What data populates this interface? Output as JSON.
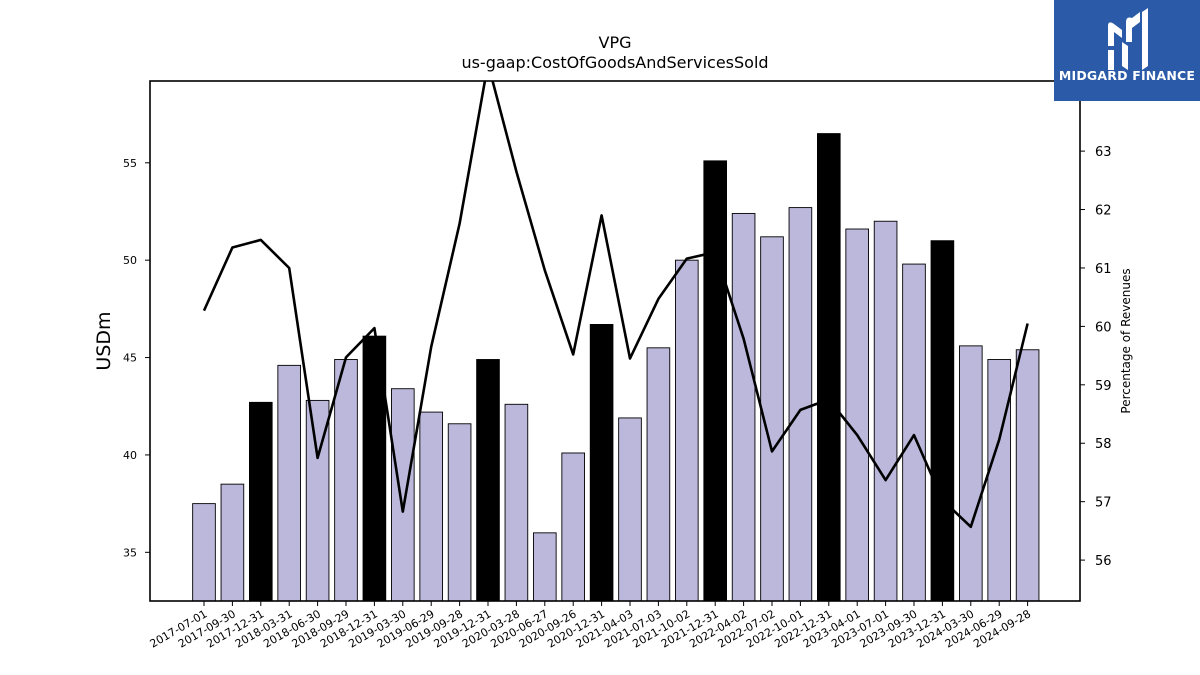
{
  "chart_data": {
    "type": "bar",
    "title": "VPG",
    "subtitle": "us-gaap:CostOfGoodsAndServicesSold",
    "ylabel": "USDm",
    "y2label": "Percentage of Revenues",
    "ylim": [
      32.5,
      59.2
    ],
    "y2lim": [
      55.3,
      64.2
    ],
    "yticks": [
      35,
      40,
      45,
      50,
      55
    ],
    "y2ticks": [
      56,
      57,
      58,
      59,
      60,
      61,
      62,
      63
    ],
    "categories": [
      "2017-07-01",
      "2017-09-30",
      "2017-12-31",
      "2018-03-31",
      "2018-06-30",
      "2018-09-29",
      "2018-12-31",
      "2019-03-30",
      "2019-06-29",
      "2019-09-28",
      "2019-12-31",
      "2020-03-28",
      "2020-06-27",
      "2020-09-26",
      "2020-12-31",
      "2021-04-03",
      "2021-07-03",
      "2021-10-02",
      "2021-12-31",
      "2022-04-02",
      "2022-07-02",
      "2022-10-01",
      "2022-12-31",
      "2023-04-01",
      "2023-07-01",
      "2023-09-30",
      "2023-12-31",
      "2024-03-30",
      "2024-06-29",
      "2024-09-28"
    ],
    "series": [
      {
        "kind": "bar",
        "values": [
          37.5,
          38.5,
          42.7,
          44.6,
          42.8,
          44.9,
          46.1,
          43.4,
          42.2,
          41.6,
          44.9,
          42.6,
          36.0,
          40.1,
          46.7,
          41.9,
          45.5,
          50.0,
          55.1,
          52.4,
          51.2,
          52.7,
          56.5,
          51.6,
          52.0,
          49.8,
          51.0,
          45.6,
          44.9,
          45.4
        ],
        "highlight": [
          false,
          false,
          true,
          false,
          false,
          false,
          true,
          false,
          false,
          false,
          true,
          false,
          false,
          false,
          true,
          false,
          false,
          false,
          true,
          false,
          false,
          false,
          true,
          false,
          false,
          false,
          true,
          false,
          false,
          false
        ]
      },
      {
        "kind": "line",
        "axis": "right",
        "values": [
          60.27,
          61.35,
          61.48,
          61.0,
          57.75,
          59.47,
          59.97,
          56.83,
          59.65,
          61.76,
          64.5,
          62.65,
          60.96,
          59.52,
          61.9,
          59.45,
          60.47,
          61.16,
          61.27,
          59.79,
          57.86,
          58.57,
          58.75,
          58.14,
          57.37,
          58.14,
          57.03,
          56.57,
          58.06,
          60.05
        ]
      }
    ],
    "colors": {
      "bar": "#bcb8db",
      "bar_highlight": "#000000",
      "line": "#000000"
    },
    "legend": "none",
    "grid": false
  },
  "branding": {
    "logo_text": "MIDGARD FINANCE",
    "logo_bg": "#2b5ba8"
  }
}
